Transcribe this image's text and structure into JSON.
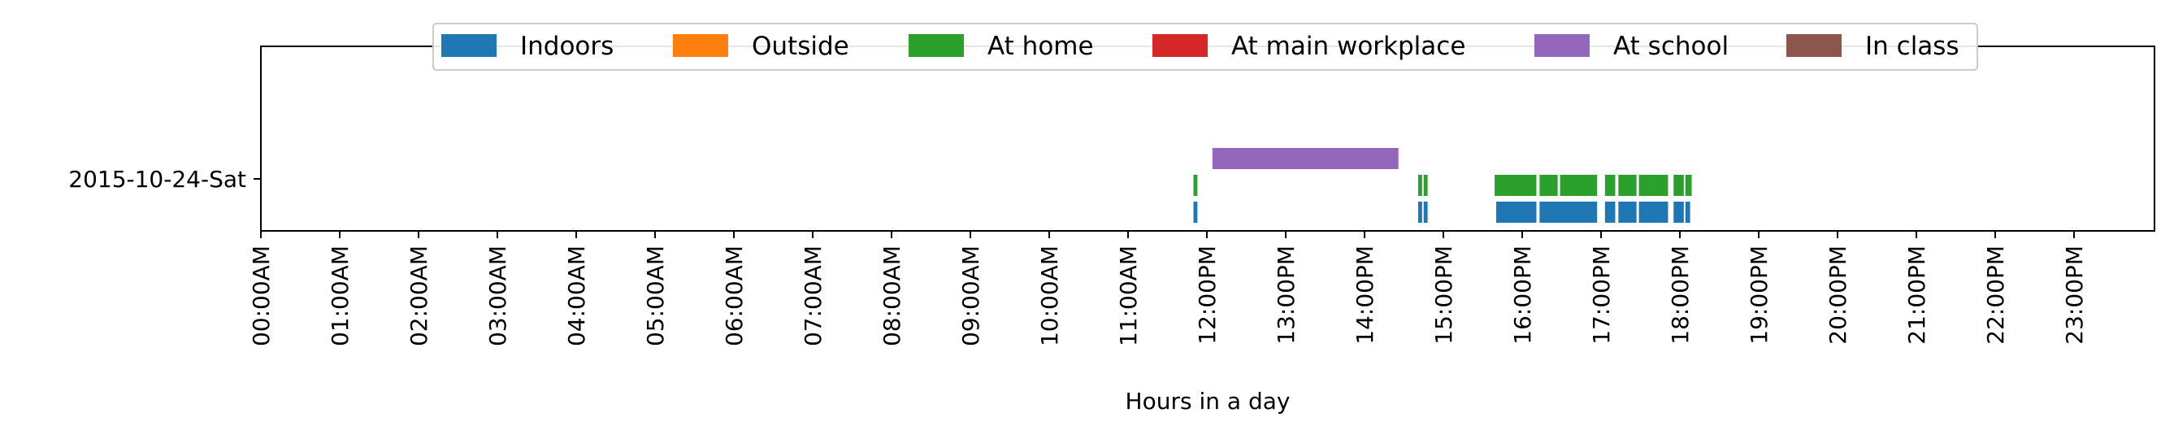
{
  "chart_data": {
    "type": "timeline",
    "xlabel": "Hours in a day",
    "ylabel": "",
    "title": "",
    "xlim": [
      0,
      24
    ],
    "x_ticks": [
      {
        "value": 0,
        "label": "00:00AM"
      },
      {
        "value": 1,
        "label": "01:00AM"
      },
      {
        "value": 2,
        "label": "02:00AM"
      },
      {
        "value": 3,
        "label": "03:00AM"
      },
      {
        "value": 4,
        "label": "04:00AM"
      },
      {
        "value": 5,
        "label": "05:00AM"
      },
      {
        "value": 6,
        "label": "06:00AM"
      },
      {
        "value": 7,
        "label": "07:00AM"
      },
      {
        "value": 8,
        "label": "08:00AM"
      },
      {
        "value": 9,
        "label": "09:00AM"
      },
      {
        "value": 10,
        "label": "10:00AM"
      },
      {
        "value": 11,
        "label": "11:00AM"
      },
      {
        "value": 12,
        "label": "12:00PM"
      },
      {
        "value": 13,
        "label": "13:00PM"
      },
      {
        "value": 14,
        "label": "14:00PM"
      },
      {
        "value": 15,
        "label": "15:00PM"
      },
      {
        "value": 16,
        "label": "16:00PM"
      },
      {
        "value": 17,
        "label": "17:00PM"
      },
      {
        "value": 18,
        "label": "18:00PM"
      },
      {
        "value": 19,
        "label": "19:00PM"
      },
      {
        "value": 20,
        "label": "20:00PM"
      },
      {
        "value": 21,
        "label": "21:00PM"
      },
      {
        "value": 22,
        "label": "22:00PM"
      },
      {
        "value": 23,
        "label": "23:00PM"
      }
    ],
    "rows": [
      "2015-10-24-Sat"
    ],
    "legend_position": "top-center",
    "grid": false,
    "series": [
      {
        "name": "Indoors",
        "color": "#1f77b4",
        "intervals": [
          [
            11.83,
            11.88
          ],
          [
            14.68,
            14.73
          ],
          [
            14.75,
            14.8
          ],
          [
            15.67,
            16.18
          ],
          [
            16.22,
            16.95
          ],
          [
            17.05,
            17.18
          ],
          [
            17.22,
            17.45
          ],
          [
            17.48,
            17.85
          ],
          [
            17.92,
            18.05
          ],
          [
            18.07,
            18.13
          ]
        ]
      },
      {
        "name": "Outside",
        "color": "#ff7f0e",
        "intervals": []
      },
      {
        "name": "At home",
        "color": "#2ca02c",
        "intervals": [
          [
            11.83,
            11.88
          ],
          [
            14.68,
            14.73
          ],
          [
            14.75,
            14.8
          ],
          [
            15.65,
            16.18
          ],
          [
            16.22,
            16.45
          ],
          [
            16.48,
            16.95
          ],
          [
            17.05,
            17.18
          ],
          [
            17.22,
            17.45
          ],
          [
            17.48,
            17.85
          ],
          [
            17.92,
            18.05
          ],
          [
            18.07,
            18.15
          ]
        ]
      },
      {
        "name": "At main workplace",
        "color": "#d62728",
        "intervals": []
      },
      {
        "name": "At school",
        "color": "#9467bd",
        "intervals": [
          [
            12.07,
            14.43
          ]
        ]
      },
      {
        "name": "In class",
        "color": "#8c564b",
        "intervals": []
      }
    ]
  }
}
